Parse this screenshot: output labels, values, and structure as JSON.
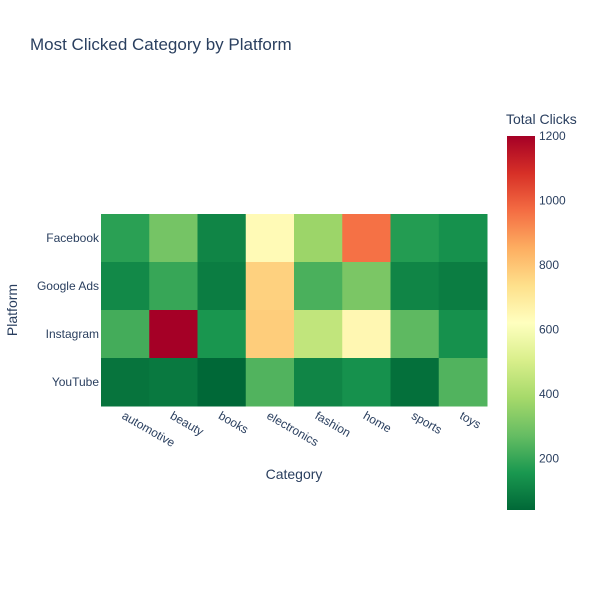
{
  "chart_data": {
    "type": "heatmap",
    "title": "Most Clicked Category by Platform",
    "xlabel": "Category",
    "ylabel": "Platform",
    "x_categories": [
      "automotive",
      "beauty",
      "books",
      "electronics",
      "fashion",
      "home",
      "sports",
      "toys"
    ],
    "y_categories": [
      "Facebook",
      "Google Ads",
      "Instagram",
      "YouTube"
    ],
    "z": [
      [
        180,
        300,
        110,
        640,
        370,
        960,
        170,
        140
      ],
      [
        120,
        200,
        90,
        770,
        230,
        310,
        110,
        90
      ],
      [
        220,
        1200,
        150,
        780,
        450,
        650,
        260,
        140
      ],
      [
        70,
        80,
        40,
        240,
        110,
        140,
        60,
        240
      ]
    ],
    "colorscale": "RdYlGn-reversed",
    "colorbar": {
      "title": "Total Clicks",
      "range": [
        40,
        1200
      ],
      "ticks": [
        200,
        400,
        600,
        800,
        1000,
        1200
      ]
    }
  }
}
